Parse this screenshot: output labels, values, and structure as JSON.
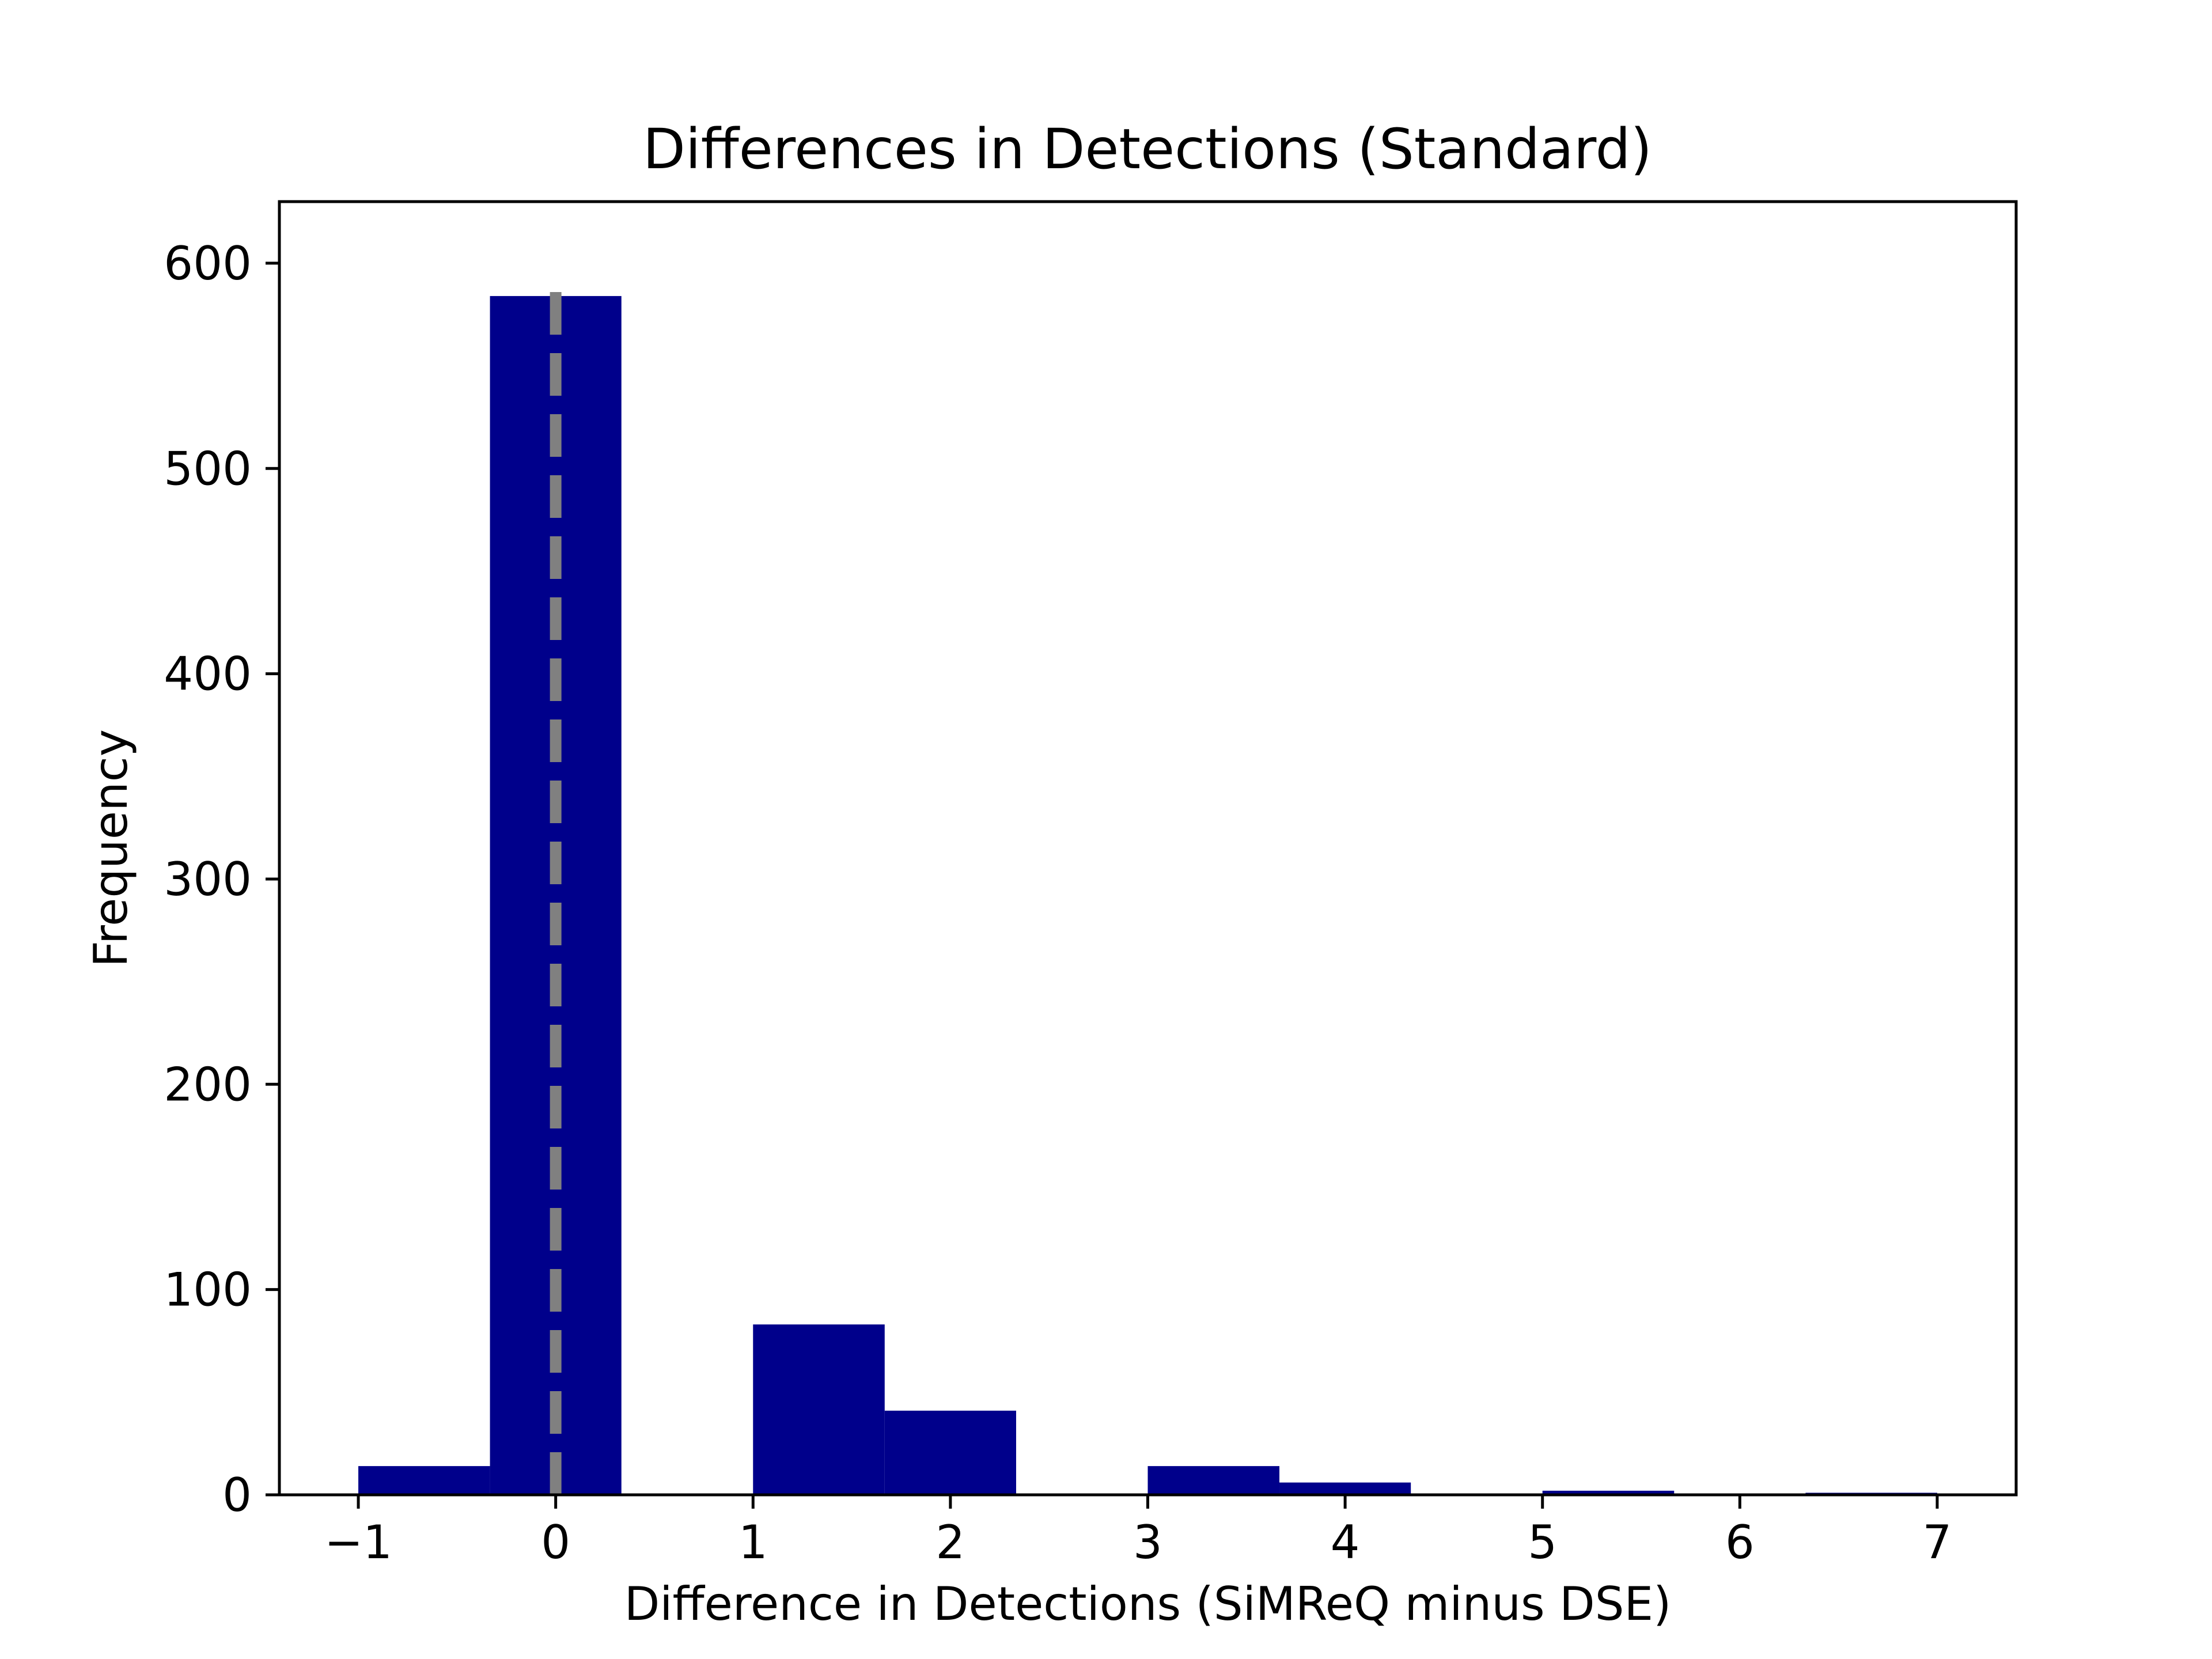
{
  "chart_data": {
    "type": "bar",
    "title": "Differences in Detections (Standard)",
    "xlabel": "Difference in Detections (SiMReQ minus DSE)",
    "ylabel": "Frequency",
    "xlim": [
      -1.4,
      7.4
    ],
    "ylim": [
      0,
      630
    ],
    "x_ticks": [
      -1,
      0,
      1,
      2,
      3,
      4,
      5,
      6,
      7
    ],
    "x_tick_labels": [
      "−1",
      "0",
      "1",
      "2",
      "3",
      "4",
      "5",
      "6",
      "7"
    ],
    "y_ticks": [
      0,
      100,
      200,
      300,
      400,
      500,
      600
    ],
    "y_tick_labels": [
      "0",
      "100",
      "200",
      "300",
      "400",
      "500",
      "600"
    ],
    "bins": [
      {
        "x0": -1.0,
        "x1": -0.333,
        "value": 14
      },
      {
        "x0": -0.333,
        "x1": 0.333,
        "value": 584
      },
      {
        "x0": 0.333,
        "x1": 1.0,
        "value": 0
      },
      {
        "x0": 1.0,
        "x1": 1.667,
        "value": 83
      },
      {
        "x0": 1.667,
        "x1": 2.333,
        "value": 41
      },
      {
        "x0": 2.333,
        "x1": 3.0,
        "value": 0
      },
      {
        "x0": 3.0,
        "x1": 3.667,
        "value": 14
      },
      {
        "x0": 3.667,
        "x1": 4.333,
        "value": 6
      },
      {
        "x0": 4.333,
        "x1": 5.0,
        "value": 0
      },
      {
        "x0": 5.0,
        "x1": 5.667,
        "value": 2
      },
      {
        "x0": 5.667,
        "x1": 6.333,
        "value": 0
      },
      {
        "x0": 6.333,
        "x1": 7.0,
        "value": 1
      }
    ],
    "bar_color": "#00008B",
    "reference_line": {
      "x": 0,
      "ymax": 590,
      "style": "dashed",
      "color": "#808080"
    },
    "grid": false,
    "legend": "none"
  }
}
